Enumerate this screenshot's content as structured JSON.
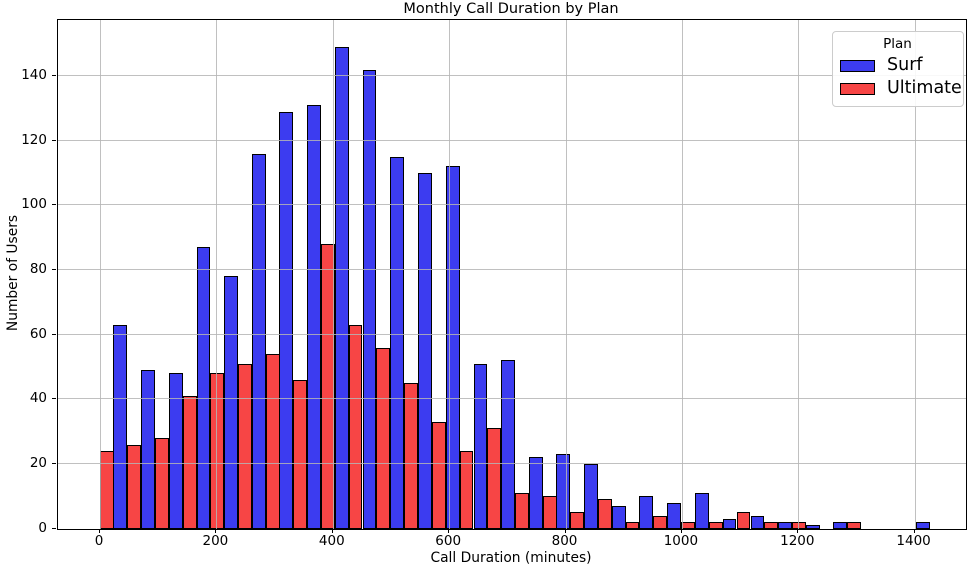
{
  "title": "Monthly Call Duration by Plan",
  "chart_data": {
    "type": "bar",
    "subtype": "grouped-histogram",
    "title": "Monthly Call Duration by Plan",
    "xlabel": "Call Duration (minutes)",
    "ylabel": "Number of Users",
    "xlim": [
      -72.3,
      1488.3
    ],
    "ylim": [
      0,
      157.3
    ],
    "x_ticks": [
      0,
      200,
      400,
      600,
      800,
      1000,
      1200,
      1400
    ],
    "y_ticks": [
      0,
      20,
      40,
      60,
      80,
      100,
      120,
      140
    ],
    "grid": true,
    "grid_color": "#b5b5b5",
    "bar_width_minutes": 23.8,
    "legend": {
      "title": "Plan",
      "position": "upper right"
    },
    "series": [
      {
        "name": "Surf",
        "color": "#3c3cf0",
        "edge_color": "#000000",
        "bars": [
          {
            "x": 23,
            "v": 63
          },
          {
            "x": 70,
            "v": 49
          },
          {
            "x": 118,
            "v": 48
          },
          {
            "x": 166,
            "v": 87
          },
          {
            "x": 213,
            "v": 78
          },
          {
            "x": 261,
            "v": 116
          },
          {
            "x": 308,
            "v": 129
          },
          {
            "x": 356,
            "v": 131
          },
          {
            "x": 404,
            "v": 149
          },
          {
            "x": 451,
            "v": 142
          },
          {
            "x": 499,
            "v": 115
          },
          {
            "x": 546,
            "v": 110
          },
          {
            "x": 594,
            "v": 112
          },
          {
            "x": 642,
            "v": 51
          },
          {
            "x": 689,
            "v": 52
          },
          {
            "x": 737,
            "v": 22
          },
          {
            "x": 784,
            "v": 23
          },
          {
            "x": 832,
            "v": 20
          },
          {
            "x": 880,
            "v": 7
          },
          {
            "x": 927,
            "v": 10
          },
          {
            "x": 975,
            "v": 8
          },
          {
            "x": 1022,
            "v": 11
          },
          {
            "x": 1070,
            "v": 3
          },
          {
            "x": 1118,
            "v": 4
          },
          {
            "x": 1165,
            "v": 2
          },
          {
            "x": 1213,
            "v": 1
          },
          {
            "x": 1260,
            "v": 2
          },
          {
            "x": 1403,
            "v": 2
          }
        ]
      },
      {
        "name": "Ultimate",
        "color": "#f74545",
        "edge_color": "#000000",
        "bars": [
          {
            "x": 0,
            "v": 24
          },
          {
            "x": 47,
            "v": 26
          },
          {
            "x": 94,
            "v": 28
          },
          {
            "x": 142,
            "v": 41
          },
          {
            "x": 189,
            "v": 48
          },
          {
            "x": 237,
            "v": 51
          },
          {
            "x": 285,
            "v": 54
          },
          {
            "x": 332,
            "v": 46
          },
          {
            "x": 380,
            "v": 88
          },
          {
            "x": 427,
            "v": 63
          },
          {
            "x": 475,
            "v": 56
          },
          {
            "x": 523,
            "v": 45
          },
          {
            "x": 570,
            "v": 33
          },
          {
            "x": 618,
            "v": 24
          },
          {
            "x": 665,
            "v": 31
          },
          {
            "x": 713,
            "v": 11
          },
          {
            "x": 761,
            "v": 10
          },
          {
            "x": 808,
            "v": 5
          },
          {
            "x": 856,
            "v": 9
          },
          {
            "x": 903,
            "v": 2
          },
          {
            "x": 951,
            "v": 4
          },
          {
            "x": 999,
            "v": 2
          },
          {
            "x": 1046,
            "v": 2
          },
          {
            "x": 1094,
            "v": 5
          },
          {
            "x": 1141,
            "v": 2
          },
          {
            "x": 1189,
            "v": 2
          },
          {
            "x": 1284,
            "v": 2
          }
        ]
      }
    ]
  }
}
